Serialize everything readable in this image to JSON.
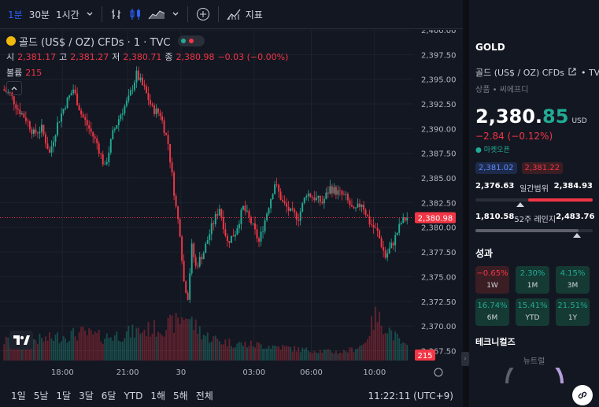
{
  "toolbar": {
    "intervals": [
      "1분",
      "30분",
      "1시간"
    ],
    "indicators_label": "지표"
  },
  "legend": {
    "title": "골드 (US$ / OZ) CFDs · 1 · TVC",
    "open_label": "시",
    "open": "2,381.17",
    "high_label": "고",
    "high": "2,381.27",
    "low_label": "저",
    "low": "2,380.71",
    "close_label": "종",
    "close": "2,380.98",
    "change": "−0.03 (−0.00%)",
    "volume_label": "볼륨",
    "volume": "215"
  },
  "chart_data": {
    "type": "candlestick",
    "ylim": [
      2366.5,
      2400.0
    ],
    "yticks": [
      "2,400.00",
      "2,397.50",
      "2,395.00",
      "2,392.50",
      "2,390.00",
      "2,387.50",
      "2,385.00",
      "2,382.50",
      "2,380.00",
      "2,377.50",
      "2,375.00",
      "2,372.50",
      "2,370.00",
      "2,367.50"
    ],
    "ytick_values": [
      2400.0,
      2397.5,
      2395.0,
      2392.5,
      2390.0,
      2387.5,
      2385.0,
      2382.5,
      2380.0,
      2377.5,
      2375.0,
      2372.5,
      2370.0,
      2367.5
    ],
    "xticks": [
      "18:00",
      "21:00",
      "30",
      "03:00",
      "06:00",
      "10:00"
    ],
    "last_price_label": "2,380.98",
    "last_price": 2380.98,
    "volume_label": "215",
    "price_path": [
      [
        0,
        2394.0
      ],
      [
        4,
        2393.5
      ],
      [
        8,
        2392.0
      ],
      [
        12,
        2391.0
      ],
      [
        16,
        2389.5
      ],
      [
        20,
        2390.0
      ],
      [
        24,
        2387.5
      ],
      [
        28,
        2390.5
      ],
      [
        32,
        2392.5
      ],
      [
        36,
        2394.0
      ],
      [
        40,
        2391.5
      ],
      [
        44,
        2390.0
      ],
      [
        48,
        2388.5
      ],
      [
        52,
        2386.0
      ],
      [
        56,
        2389.5
      ],
      [
        60,
        2391.5
      ],
      [
        64,
        2393.0
      ],
      [
        68,
        2395.5
      ],
      [
        72,
        2394.0
      ],
      [
        76,
        2392.0
      ],
      [
        80,
        2391.5
      ],
      [
        84,
        2388.5
      ],
      [
        88,
        2382.0
      ],
      [
        90,
        2379.5
      ],
      [
        92,
        2374.5
      ],
      [
        94,
        2373.0
      ],
      [
        96,
        2378.0
      ],
      [
        98,
        2376.0
      ],
      [
        102,
        2377.5
      ],
      [
        106,
        2380.0
      ],
      [
        110,
        2382.0
      ],
      [
        114,
        2378.5
      ],
      [
        118,
        2379.5
      ],
      [
        122,
        2382.0
      ],
      [
        126,
        2380.5
      ],
      [
        130,
        2378.5
      ],
      [
        134,
        2381.5
      ],
      [
        138,
        2384.5
      ],
      [
        142,
        2382.5
      ],
      [
        146,
        2381.5
      ],
      [
        150,
        2381.0
      ],
      [
        154,
        2383.5
      ],
      [
        158,
        2383.0
      ],
      [
        162,
        2382.5
      ],
      [
        166,
        2384.0
      ],
      [
        170,
        2383.5
      ],
      [
        174,
        2383.0
      ],
      [
        178,
        2381.5
      ],
      [
        182,
        2382.5
      ],
      [
        186,
        2380.5
      ],
      [
        190,
        2379.5
      ],
      [
        194,
        2377.0
      ],
      [
        198,
        2378.5
      ],
      [
        202,
        2380.5
      ],
      [
        205,
        2380.98
      ]
    ],
    "volume_profile": [
      [
        0,
        0.35
      ],
      [
        10,
        0.4
      ],
      [
        20,
        0.38
      ],
      [
        30,
        0.45
      ],
      [
        40,
        0.5
      ],
      [
        50,
        0.42
      ],
      [
        60,
        0.48
      ],
      [
        70,
        0.55
      ],
      [
        80,
        0.6
      ],
      [
        88,
        0.7
      ],
      [
        92,
        0.85
      ],
      [
        96,
        0.65
      ],
      [
        102,
        0.45
      ],
      [
        110,
        0.35
      ],
      [
        120,
        0.3
      ],
      [
        130,
        0.28
      ],
      [
        140,
        0.25
      ],
      [
        150,
        0.2
      ],
      [
        160,
        0.18
      ],
      [
        170,
        0.15
      ],
      [
        176,
        0.2
      ],
      [
        182,
        0.3
      ],
      [
        188,
        0.8
      ],
      [
        194,
        0.6
      ],
      [
        200,
        0.35
      ],
      [
        205,
        0.2
      ]
    ]
  },
  "ranges": [
    "1일",
    "5날",
    "1달",
    "3달",
    "6달",
    "YTD",
    "1해",
    "5해",
    "전체"
  ],
  "clock": "11:22:11 (UTC+9)",
  "panel": {
    "symbol": "GOLD",
    "full_name": "골드 (US$ / OZ) CFDs",
    "exchange": "TVC",
    "category": "상품 • 씨에프디",
    "price_int": "2,380.",
    "price_frac": "85",
    "currency": "USD",
    "change": "−2.84 (−0.12%)",
    "market_status": "● 마켓오픈",
    "bid": "2,381.02",
    "ask": "2,381.22",
    "day_low": "2,376.63",
    "day_range_label": "일간범위",
    "day_high": "2,384.93",
    "year_low": "1,810.58",
    "year_range_label": "52주 레인지",
    "year_high": "2,483.76",
    "performance_label": "성과",
    "performance": [
      {
        "pct": "−0.65%",
        "period": "1W",
        "dir": "neg"
      },
      {
        "pct": "2.30%",
        "period": "1M",
        "dir": "pos"
      },
      {
        "pct": "4.15%",
        "period": "3M",
        "dir": "pos"
      },
      {
        "pct": "16.74%",
        "period": "6M",
        "dir": "pos"
      },
      {
        "pct": "15.41%",
        "period": "YTD",
        "dir": "pos"
      },
      {
        "pct": "21.51%",
        "period": "1Y",
        "dir": "pos"
      }
    ],
    "technicals_label": "테크니컬즈",
    "technicals_value": "뉴트럴"
  },
  "colors": {
    "up": "#22ab94",
    "down": "#f23645",
    "accent": "#2962ff",
    "bg": "#131722"
  }
}
